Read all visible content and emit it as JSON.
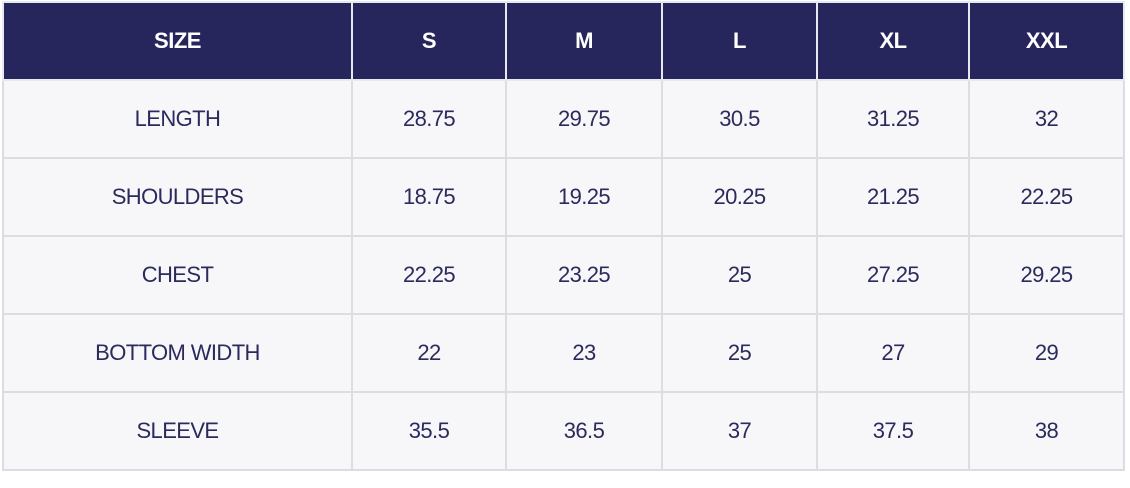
{
  "table": {
    "header": [
      "SIZE",
      "S",
      "M",
      "L",
      "XL",
      "XXL"
    ],
    "rows": [
      [
        "LENGTH",
        "28.75",
        "29.75",
        "30.5",
        "31.25",
        "32"
      ],
      [
        "SHOULDERS",
        "18.75",
        "19.25",
        "20.25",
        "21.25",
        "22.25"
      ],
      [
        "CHEST",
        "22.25",
        "23.25",
        "25",
        "27.25",
        "29.25"
      ],
      [
        "BOTTOM WIDTH",
        "22",
        "23",
        "25",
        "27",
        "29"
      ],
      [
        "SLEEVE",
        "35.5",
        "36.5",
        "37",
        "37.5",
        "38"
      ]
    ]
  }
}
